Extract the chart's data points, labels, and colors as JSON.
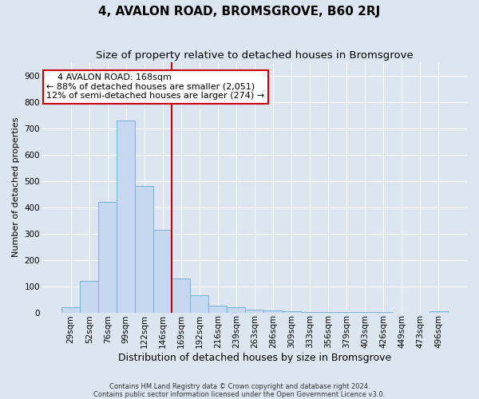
{
  "title": "4, AVALON ROAD, BROMSGROVE, B60 2RJ",
  "subtitle": "Size of property relative to detached houses in Bromsgrove",
  "xlabel": "Distribution of detached houses by size in Bromsgrove",
  "ylabel": "Number of detached properties",
  "footer_line1": "Contains HM Land Registry data © Crown copyright and database right 2024.",
  "footer_line2": "Contains public sector information licensed under the Open Government Licence v3.0.",
  "bar_labels": [
    "29sqm",
    "52sqm",
    "76sqm",
    "99sqm",
    "122sqm",
    "146sqm",
    "169sqm",
    "192sqm",
    "216sqm",
    "239sqm",
    "263sqm",
    "286sqm",
    "309sqm",
    "333sqm",
    "356sqm",
    "379sqm",
    "403sqm",
    "426sqm",
    "449sqm",
    "473sqm",
    "496sqm"
  ],
  "bar_values": [
    20,
    120,
    420,
    730,
    480,
    315,
    130,
    65,
    25,
    20,
    10,
    7,
    5,
    3,
    3,
    2,
    1,
    1,
    0,
    0,
    5
  ],
  "bar_color": "#c5d8f0",
  "bar_edge_color": "#7aafd4",
  "vline_x": 5.5,
  "vline_color": "#cc0000",
  "annotation_line1": "    4 AVALON ROAD: 168sqm",
  "annotation_line2": "← 88% of detached houses are smaller (2,051)",
  "annotation_line3": "12% of semi-detached houses are larger (274) →",
  "annotation_box_color": "#ffffff",
  "annotation_box_edge": "#cc0000",
  "ylim": [
    0,
    950
  ],
  "yticks": [
    0,
    100,
    200,
    300,
    400,
    500,
    600,
    700,
    800,
    900
  ],
  "fig_bg_color": "#dde6f0",
  "plot_bg_color": "#dde6f0",
  "title_fontsize": 11,
  "subtitle_fontsize": 9.5,
  "xlabel_fontsize": 9,
  "ylabel_fontsize": 8,
  "tick_fontsize": 7.5,
  "annotation_fontsize": 8,
  "footer_fontsize": 6
}
